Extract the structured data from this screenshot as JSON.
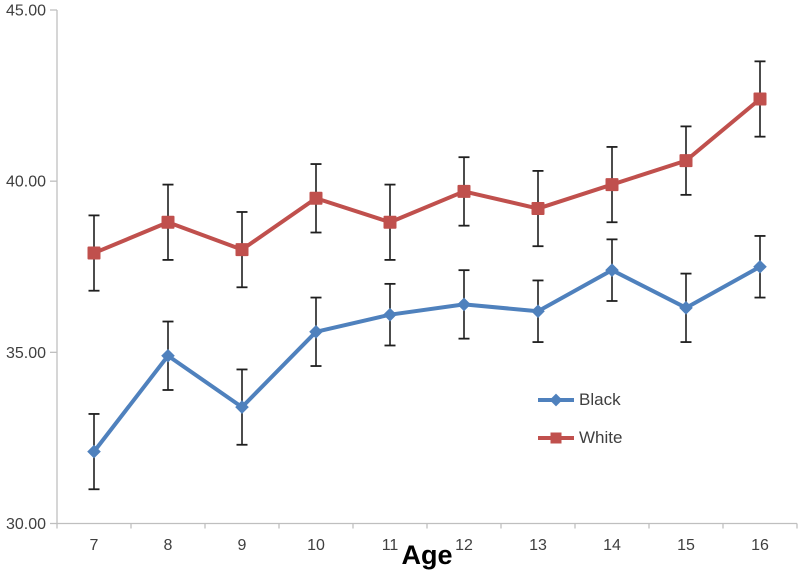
{
  "chart_data": {
    "type": "line",
    "title": "",
    "xlabel": "Age",
    "ylabel": "",
    "x": [
      7,
      8,
      9,
      10,
      11,
      12,
      13,
      14,
      15,
      16
    ],
    "ylim": [
      30,
      45
    ],
    "yticks": [
      30,
      35,
      40,
      45
    ],
    "ytick_labels": [
      "30.00",
      "35.00",
      "40.00",
      "45.00"
    ],
    "grid": false,
    "legend_position": "inside-right",
    "axis_color": "#BFBFBF",
    "tick_label_color": "#3F3F3F",
    "error_bar_color": "#1F1F1F",
    "background_color": "#FFFFFF",
    "series": [
      {
        "name": "Black",
        "color": "#4F81BD",
        "marker": "diamond",
        "values": [
          32.1,
          34.9,
          33.4,
          35.6,
          36.1,
          36.4,
          36.2,
          37.4,
          36.3,
          37.5
        ],
        "errors": [
          1.1,
          1.0,
          1.1,
          1.0,
          0.9,
          1.0,
          0.9,
          0.9,
          1.0,
          0.9
        ]
      },
      {
        "name": "White",
        "color": "#C0504D",
        "marker": "square",
        "values": [
          37.9,
          38.8,
          38.0,
          39.5,
          38.8,
          39.7,
          39.2,
          39.9,
          40.6,
          42.4
        ],
        "errors": [
          1.1,
          1.1,
          1.1,
          1.0,
          1.1,
          1.0,
          1.1,
          1.1,
          1.0,
          1.1
        ]
      }
    ]
  }
}
